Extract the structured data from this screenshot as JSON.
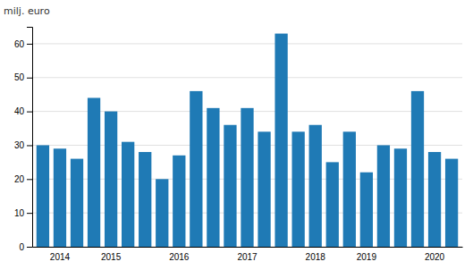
{
  "chart_data": {
    "type": "bar",
    "ylabel": "milj. euro",
    "color": "#1f7ab5",
    "categories": [
      null,
      "2014",
      null,
      null,
      "2015",
      null,
      null,
      null,
      "2016",
      null,
      null,
      null,
      "2017",
      null,
      null,
      null,
      "2018",
      null,
      null,
      "2019",
      null,
      null,
      null,
      "2020",
      null
    ],
    "values": [
      30,
      29,
      26,
      44,
      40,
      31,
      28,
      20,
      27,
      46,
      41,
      36,
      41,
      34,
      63,
      34,
      36,
      25,
      34,
      22,
      30,
      29,
      46,
      28,
      26
    ],
    "ylim": [
      0,
      65
    ],
    "yticks": [
      0,
      10,
      20,
      30,
      40,
      50,
      60
    ],
    "grid": true
  }
}
